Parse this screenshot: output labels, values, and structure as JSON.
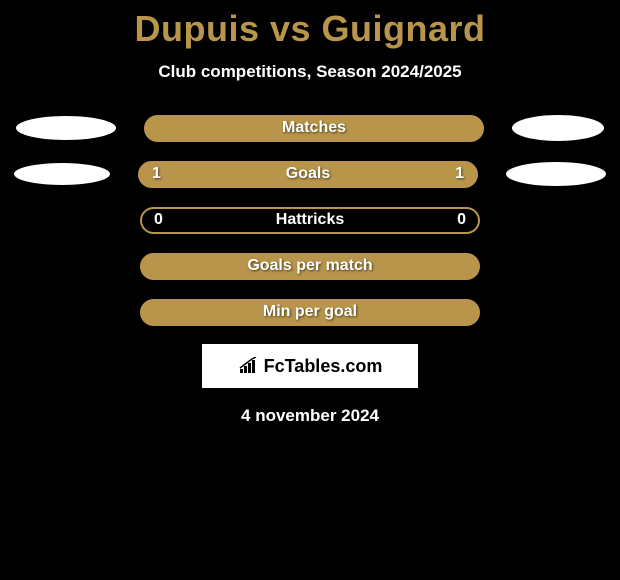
{
  "title": "Dupuis vs Guignard",
  "subtitle": "Club competitions, Season 2024/2025",
  "date": "4 november 2024",
  "logo_text": "FcTables.com",
  "colors": {
    "background": "#000000",
    "title_color": "#b8954a",
    "bar_border": "#b8954a",
    "bar_fill": "#b8954a",
    "ellipse_color": "#ffffff",
    "text_color": "#ffffff"
  },
  "rows": [
    {
      "label": "Matches",
      "left_value": "",
      "right_value": "",
      "show_left_ellipse": true,
      "show_right_ellipse": true,
      "left_ellipse_w": 100,
      "left_ellipse_h": 24,
      "right_ellipse_w": 92,
      "right_ellipse_h": 26,
      "bar_filled": true
    },
    {
      "label": "Goals",
      "left_value": "1",
      "right_value": "1",
      "show_left_ellipse": true,
      "show_right_ellipse": true,
      "left_ellipse_w": 96,
      "left_ellipse_h": 22,
      "right_ellipse_w": 100,
      "right_ellipse_h": 24,
      "bar_filled": true
    },
    {
      "label": "Hattricks",
      "left_value": "0",
      "right_value": "0",
      "show_left_ellipse": false,
      "show_right_ellipse": false,
      "bar_filled": false
    },
    {
      "label": "Goals per match",
      "left_value": "",
      "right_value": "",
      "show_left_ellipse": false,
      "show_right_ellipse": false,
      "bar_filled": true
    },
    {
      "label": "Min per goal",
      "left_value": "",
      "right_value": "",
      "show_left_ellipse": false,
      "show_right_ellipse": false,
      "bar_filled": true
    }
  ]
}
